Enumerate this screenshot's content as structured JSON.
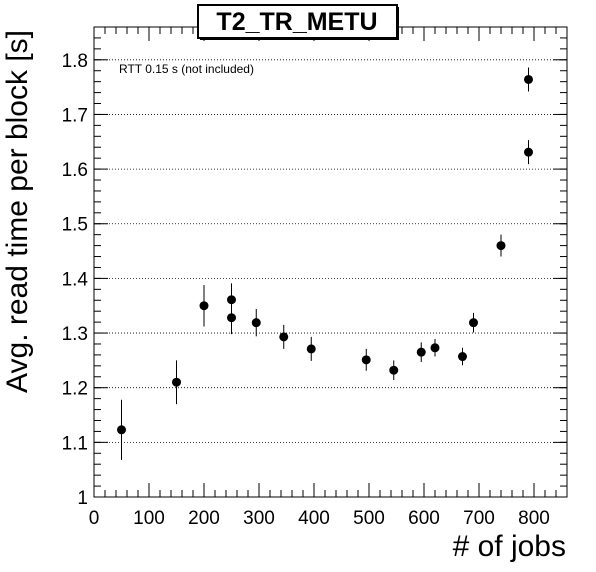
{
  "chart_data": {
    "type": "scatter",
    "title": "T2_TR_METU",
    "xlabel": "# of jobs",
    "ylabel": "Avg. read time per block [s]",
    "annotation": "RTT 0.15 s (not included)",
    "xlim": [
      0,
      860
    ],
    "ylim": [
      1.0,
      1.86
    ],
    "x_ticks": [
      0,
      100,
      200,
      300,
      400,
      500,
      600,
      700,
      800
    ],
    "y_ticks": [
      1,
      1.1,
      1.2,
      1.3,
      1.4,
      1.5,
      1.6,
      1.7,
      1.8
    ],
    "y_tick_labels": [
      "1",
      "1.1",
      "1.2",
      "1.3",
      "1.4",
      "1.5",
      "1.6",
      "1.7",
      "1.8"
    ],
    "grid": "horizontal-dotted",
    "points": [
      {
        "x": 50,
        "y": 1.123,
        "err": 0.055
      },
      {
        "x": 150,
        "y": 1.21,
        "err": 0.04
      },
      {
        "x": 200,
        "y": 1.35,
        "err": 0.038
      },
      {
        "x": 250,
        "y": 1.361,
        "err": 0.03
      },
      {
        "x": 250,
        "y": 1.328,
        "err": 0.03
      },
      {
        "x": 295,
        "y": 1.319,
        "err": 0.025
      },
      {
        "x": 345,
        "y": 1.293,
        "err": 0.022
      },
      {
        "x": 395,
        "y": 1.271,
        "err": 0.022
      },
      {
        "x": 495,
        "y": 1.251,
        "err": 0.02
      },
      {
        "x": 545,
        "y": 1.232,
        "err": 0.018
      },
      {
        "x": 595,
        "y": 1.265,
        "err": 0.018
      },
      {
        "x": 620,
        "y": 1.273,
        "err": 0.016
      },
      {
        "x": 670,
        "y": 1.257,
        "err": 0.016
      },
      {
        "x": 690,
        "y": 1.319,
        "err": 0.018
      },
      {
        "x": 740,
        "y": 1.46,
        "err": 0.02
      },
      {
        "x": 790,
        "y": 1.631,
        "err": 0.022
      },
      {
        "x": 790,
        "y": 1.764,
        "err": 0.022
      }
    ]
  }
}
